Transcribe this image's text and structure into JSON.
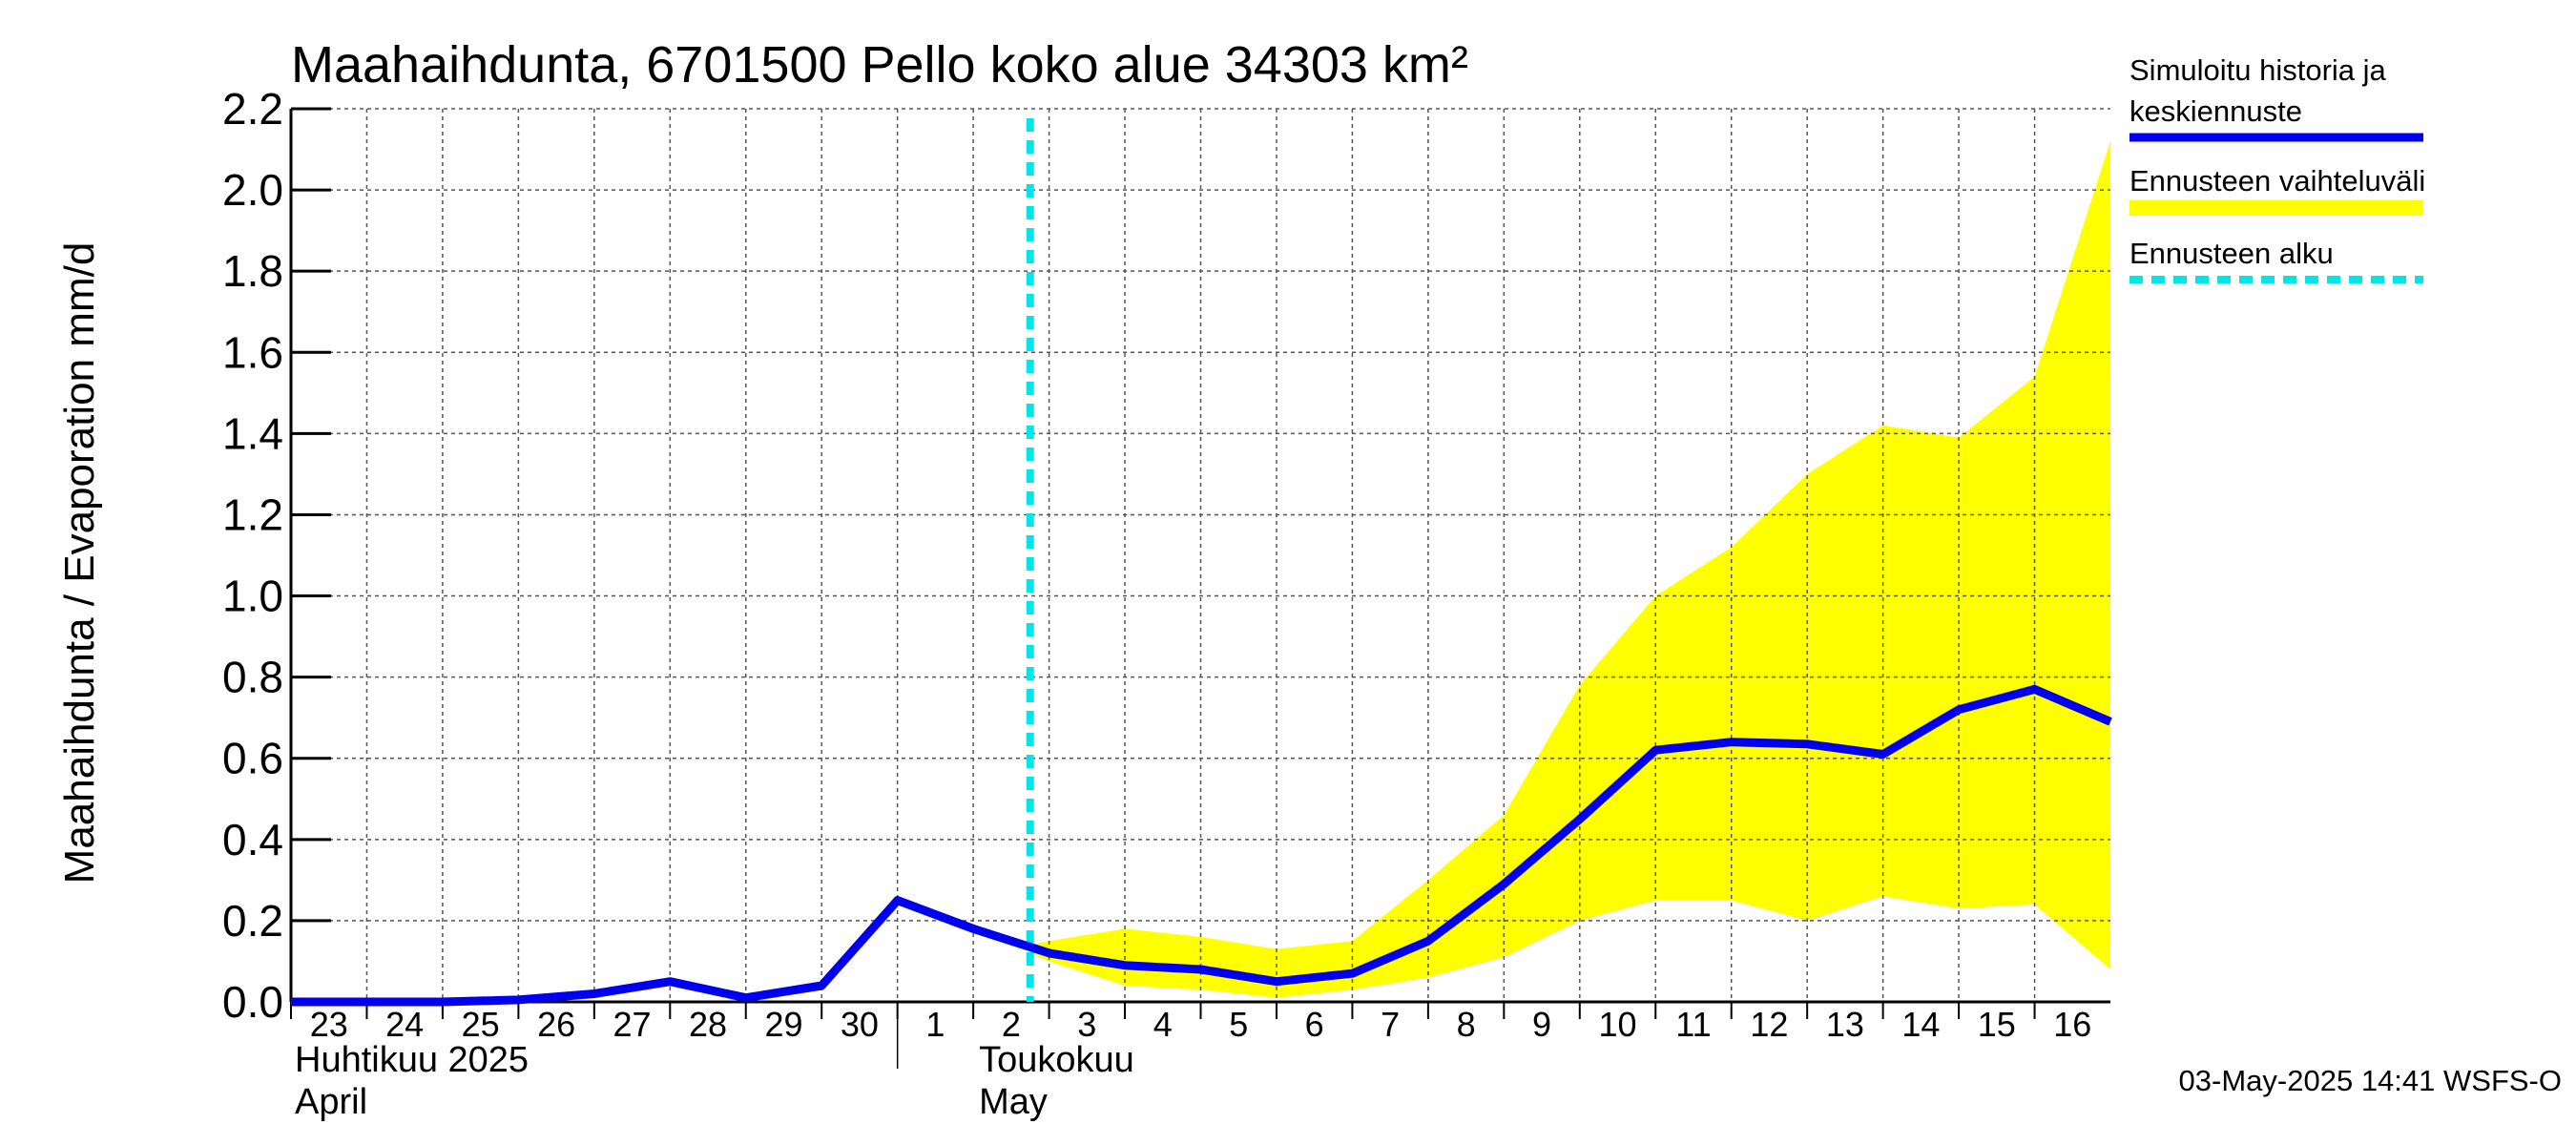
{
  "chart_data": {
    "type": "line",
    "title": "Maahaihdunta, 6701500 Pello koko alue 34303 km²",
    "ylabel": "Maahaihdunta / Evaporation   mm/d",
    "ylim": [
      0.0,
      2.2
    ],
    "yticks": [
      "0.0",
      "0.2",
      "0.4",
      "0.6",
      "0.8",
      "1.0",
      "1.2",
      "1.4",
      "1.6",
      "1.8",
      "2.0",
      "2.2"
    ],
    "x_tick_labels": [
      "23",
      "24",
      "25",
      "26",
      "27",
      "28",
      "29",
      "30",
      "1",
      "2",
      "3",
      "4",
      "5",
      "6",
      "7",
      "8",
      "9",
      "10",
      "11",
      "12",
      "13",
      "14",
      "15",
      "16"
    ],
    "x_dates": [
      "2025-04-23",
      "2025-04-24",
      "2025-04-25",
      "2025-04-26",
      "2025-04-27",
      "2025-04-28",
      "2025-04-29",
      "2025-04-30",
      "2025-05-01",
      "2025-05-02",
      "2025-05-03",
      "2025-05-04",
      "2025-05-05",
      "2025-05-06",
      "2025-05-07",
      "2025-05-08",
      "2025-05-09",
      "2025-05-10",
      "2025-05-11",
      "2025-05-12",
      "2025-05-13",
      "2025-05-14",
      "2025-05-15",
      "2025-05-16"
    ],
    "months": [
      {
        "line1": "Huhtikuu  2025",
        "line2": "April"
      },
      {
        "line1": "Toukokuu",
        "line2": "May"
      }
    ],
    "x_range": [
      "2025-04-23",
      "2025-05-17"
    ],
    "forecast_start": "2025-05-02T18:00",
    "series": [
      {
        "name": "Simuloitu historia ja keskiennuste",
        "color": "#0000ee",
        "points": [
          [
            "2025-04-23",
            0.0
          ],
          [
            "2025-04-24",
            0.0
          ],
          [
            "2025-04-25",
            0.0
          ],
          [
            "2025-04-26",
            0.005
          ],
          [
            "2025-04-27",
            0.02
          ],
          [
            "2025-04-28",
            0.05
          ],
          [
            "2025-04-29",
            0.01
          ],
          [
            "2025-04-30",
            0.04
          ],
          [
            "2025-05-01",
            0.25
          ],
          [
            "2025-05-02",
            0.18
          ],
          [
            "2025-05-03",
            0.12
          ],
          [
            "2025-05-04",
            0.09
          ],
          [
            "2025-05-05",
            0.08
          ],
          [
            "2025-05-06",
            0.05
          ],
          [
            "2025-05-07",
            0.07
          ],
          [
            "2025-05-08",
            0.15
          ],
          [
            "2025-05-09",
            0.29
          ],
          [
            "2025-05-10",
            0.45
          ],
          [
            "2025-05-11",
            0.62
          ],
          [
            "2025-05-12",
            0.64
          ],
          [
            "2025-05-13",
            0.635
          ],
          [
            "2025-05-14",
            0.61
          ],
          [
            "2025-05-15",
            0.72
          ],
          [
            "2025-05-16",
            0.77
          ],
          [
            "2025-05-17",
            0.69
          ]
        ]
      }
    ],
    "band": {
      "name": "Ennusteen vaihteluväli",
      "color": "#ffff00",
      "x": [
        "2025-05-02T18:00",
        "2025-05-03",
        "2025-05-04",
        "2025-05-05",
        "2025-05-06",
        "2025-05-07",
        "2025-05-08",
        "2025-05-09",
        "2025-05-10",
        "2025-05-11",
        "2025-05-12",
        "2025-05-13",
        "2025-05-14",
        "2025-05-15",
        "2025-05-16",
        "2025-05-17"
      ],
      "upper": [
        0.14,
        0.15,
        0.18,
        0.16,
        0.13,
        0.15,
        0.3,
        0.46,
        0.78,
        1.0,
        1.12,
        1.3,
        1.42,
        1.39,
        1.54,
        2.12
      ],
      "lower": [
        0.12,
        0.1,
        0.04,
        0.03,
        0.01,
        0.03,
        0.06,
        0.11,
        0.2,
        0.25,
        0.25,
        0.2,
        0.26,
        0.23,
        0.24,
        0.08
      ]
    },
    "legend": {
      "placement": "right",
      "items": [
        {
          "label_line1": "Simuloitu historia ja",
          "label_line2": "keskiennuste",
          "color": "#0000ee",
          "style": "solid"
        },
        {
          "label_line1": "Ennusteen vaihteluväli",
          "label_line2": "",
          "color": "#ffff00",
          "style": "band"
        },
        {
          "label_line1": "Ennusteen alku",
          "label_line2": "",
          "color": "#00e5e5",
          "style": "dashed"
        }
      ]
    },
    "forecast_line_color": "#00e5e5",
    "grid": true,
    "footer": "03-May-2025 14:41 WSFS-O"
  }
}
